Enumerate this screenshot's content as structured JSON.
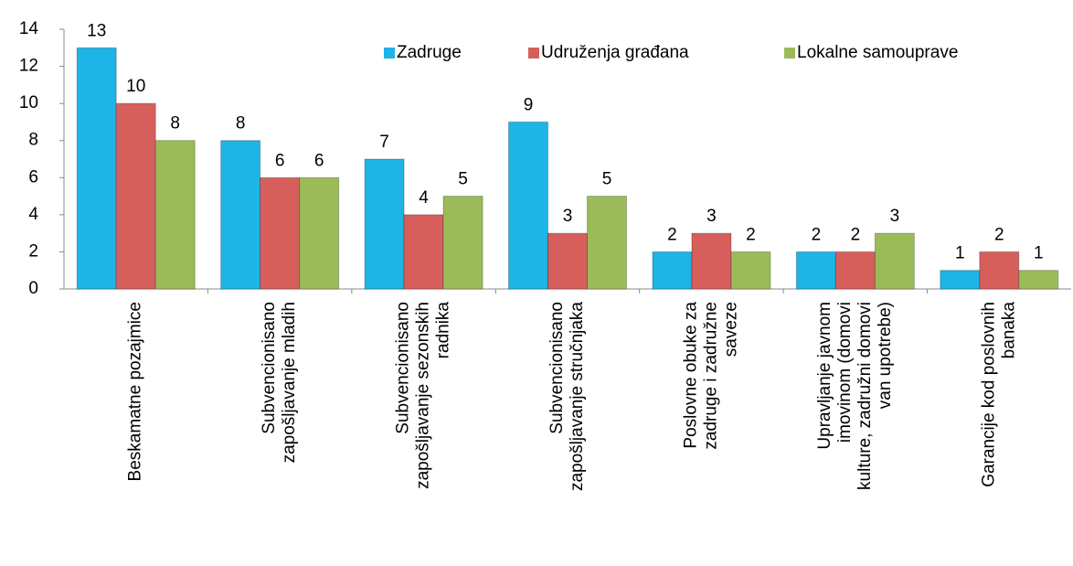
{
  "chart_data": {
    "type": "bar",
    "categories": [
      "Beskamatne pozajmice",
      "Subvencionisano\nzapošljavanje mladih",
      "Subvencionisano\nzapošljavanje sezonskih\nradnika",
      "Subvencionisano\nzapošljavanje stručnjaka",
      "Poslovne obuke za\nzadruge i zadružne\nsaveze",
      "Upravljanje javnom\nimovinom (domovi\nkulture, zadružni domovi\nvan upotrebe)",
      "Garancije kod poslovnih\nbanaka"
    ],
    "series": [
      {
        "name": "Zadruge",
        "color": "#1fb4e6",
        "values": [
          13,
          8,
          7,
          9,
          2,
          2,
          1
        ]
      },
      {
        "name": "Udruženja građana",
        "color": "#d65f5c",
        "values": [
          10,
          6,
          4,
          3,
          3,
          2,
          2
        ]
      },
      {
        "name": "Lokalne samouprave",
        "color": "#9bbb59",
        "values": [
          8,
          6,
          5,
          5,
          2,
          3,
          1
        ]
      }
    ],
    "ylim": [
      0,
      14
    ],
    "yticks": [
      0,
      2,
      4,
      6,
      8,
      10,
      12,
      14
    ],
    "grid": false,
    "legend": "top"
  }
}
